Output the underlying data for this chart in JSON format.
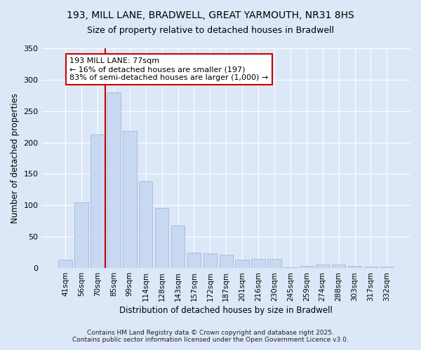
{
  "title1": "193, MILL LANE, BRADWELL, GREAT YARMOUTH, NR31 8HS",
  "title2": "Size of property relative to detached houses in Bradwell",
  "xlabel": "Distribution of detached houses by size in Bradwell",
  "ylabel": "Number of detached properties",
  "categories": [
    "41sqm",
    "56sqm",
    "70sqm",
    "85sqm",
    "99sqm",
    "114sqm",
    "128sqm",
    "143sqm",
    "157sqm",
    "172sqm",
    "187sqm",
    "201sqm",
    "216sqm",
    "230sqm",
    "245sqm",
    "259sqm",
    "274sqm",
    "288sqm",
    "303sqm",
    "317sqm",
    "332sqm"
  ],
  "values": [
    14,
    105,
    213,
    280,
    218,
    138,
    96,
    68,
    25,
    23,
    21,
    13,
    15,
    15,
    1,
    3,
    6,
    6,
    3,
    2,
    2
  ],
  "bar_color": "#c8d8f0",
  "bar_edge_color": "#a0b8d8",
  "vline_x": 3.0,
  "vline_color": "#cc0000",
  "annotation_text": "193 MILL LANE: 77sqm\n← 16% of detached houses are smaller (197)\n83% of semi-detached houses are larger (1,000) →",
  "annotation_box_color": "#ffffff",
  "annotation_box_edge": "#cc0000",
  "bg_color": "#dce8f8",
  "plot_bg_color": "#dce8f8",
  "grid_color": "#ffffff",
  "footer": "Contains HM Land Registry data © Crown copyright and database right 2025.\nContains public sector information licensed under the Open Government Licence v3.0.",
  "ylim": [
    0,
    350
  ],
  "yticks": [
    0,
    50,
    100,
    150,
    200,
    250,
    300,
    350
  ],
  "title1_fontsize": 10,
  "title2_fontsize": 9
}
